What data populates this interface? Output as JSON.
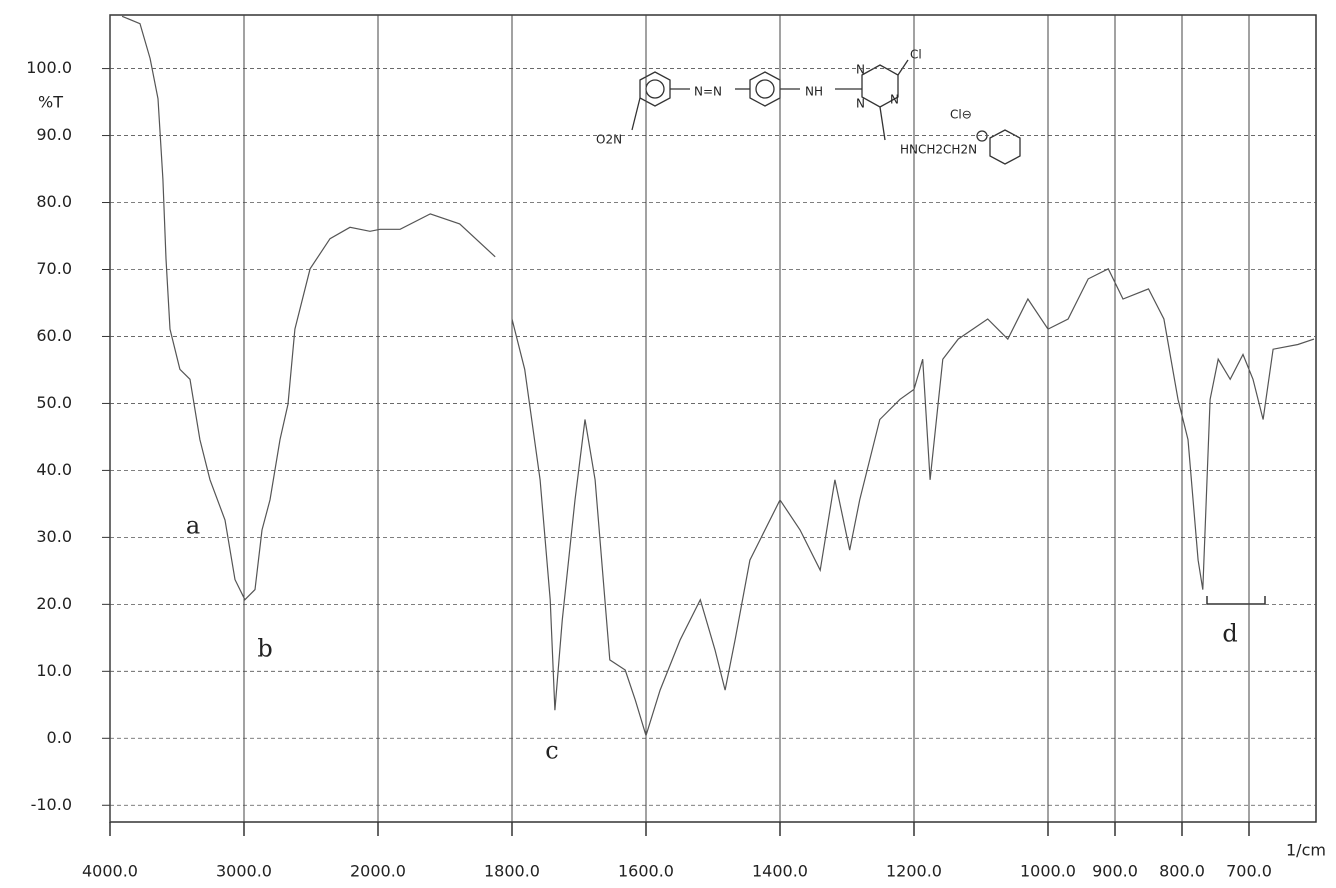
{
  "chart_data": {
    "type": "line",
    "y_label": "%T",
    "x_label": "1/cm",
    "x": [
      3910,
      3776,
      3701,
      3642,
      3605,
      3582,
      3552,
      3478,
      3403,
      3329,
      3254,
      3142,
      3067,
      2993,
      2918,
      2866,
      2806,
      2731,
      2672,
      2620,
      2507,
      2358,
      2209,
      2060,
      1997,
      1967,
      1922,
      1878,
      1825,
      null,
      1800,
      1781,
      1758,
      1743,
      1736,
      1725,
      1706,
      1691,
      1676,
      1654,
      1631,
      1616,
      1600,
      1579,
      1549,
      1519,
      1497,
      1482,
      1467,
      1445,
      1430,
      1400,
      1370,
      1340,
      1318,
      1296,
      1281,
      1251,
      1221,
      1200,
      1187,
      1176,
      1157,
      1134,
      1090,
      1060,
      1030,
      1000,
      970,
      940,
      910,
      888,
      850,
      827,
      806,
      791,
      776,
      769,
      758,
      746,
      728,
      709,
      694,
      679,
      664,
      627,
      603
    ],
    "series": [
      {
        "color": "#555555",
        "values": [
          107.8,
          106.7,
          101.5,
          95.5,
          83.5,
          71.6,
          61.1,
          55.1,
          53.6,
          44.6,
          38.6,
          32.6,
          23.7,
          20.7,
          22.2,
          31.1,
          35.6,
          44.6,
          49.9,
          61.1,
          70.1,
          74.6,
          76.3,
          75.7,
          76.0,
          76.0,
          78.3,
          76.8,
          71.9,
          null,
          62.6,
          55.1,
          38.6,
          20.7,
          4.2,
          17.7,
          35.6,
          47.6,
          38.6,
          11.7,
          10.2,
          5.7,
          0.4,
          7.2,
          14.7,
          20.7,
          13.2,
          7.2,
          14.7,
          26.6,
          29.6,
          35.6,
          31.1,
          25.1,
          38.6,
          28.1,
          35.6,
          47.6,
          50.6,
          52.1,
          56.6,
          38.6,
          56.6,
          59.6,
          62.6,
          59.6,
          65.6,
          61.1,
          62.6,
          68.6,
          70.1,
          65.6,
          67.1,
          62.6,
          50.6,
          44.6,
          26.6,
          22.2,
          50.6,
          56.6,
          53.6,
          57.3,
          53.6,
          47.6,
          58.1,
          58.8,
          59.6
        ]
      }
    ],
    "xlim": [
      4000,
      600
    ],
    "x_scale_break": 2000,
    "xticks": [
      {
        "value": 4000,
        "label": "4000.0"
      },
      {
        "value": 3000,
        "label": "3000.0"
      },
      {
        "value": 2000,
        "label": "2000.0"
      },
      {
        "value": 1800,
        "label": "1800.0"
      },
      {
        "value": 1600,
        "label": "1600.0"
      },
      {
        "value": 1400,
        "label": "1400.0"
      },
      {
        "value": 1200,
        "label": "1200.0"
      },
      {
        "value": 1000,
        "label": "1000.0"
      },
      {
        "value": 900,
        "label": "900.0"
      },
      {
        "value": 800,
        "label": "800.0"
      },
      {
        "value": 700,
        "label": "700.0"
      }
    ],
    "ylim": [
      -12.5,
      108
    ],
    "yticks": [
      {
        "value": -10,
        "label": "-10.0"
      },
      {
        "value": 0,
        "label": "0.0"
      },
      {
        "value": 10,
        "label": "10.0"
      },
      {
        "value": 20,
        "label": "20.0"
      },
      {
        "value": 30,
        "label": "30.0"
      },
      {
        "value": 40,
        "label": "40.0"
      },
      {
        "value": 50,
        "label": "50.0"
      },
      {
        "value": 60,
        "label": "60.0"
      },
      {
        "value": 70,
        "label": "70.0"
      },
      {
        "value": 80,
        "label": "80.0"
      },
      {
        "value": 90,
        "label": "90.0"
      },
      {
        "value": 100,
        "label": "100.0"
      }
    ],
    "grid": true,
    "annotations": [
      "a",
      "b",
      "c",
      "d"
    ],
    "structure": {
      "nitro": "O2N",
      "azo": "N=N",
      "amine": "NH",
      "chloro": "Cl",
      "ring_n1": "N",
      "ring_n2": "N",
      "ring_n3": "N",
      "side_chain": "HNCH2CH2N",
      "counter_ion": "Cl⊖"
    }
  }
}
